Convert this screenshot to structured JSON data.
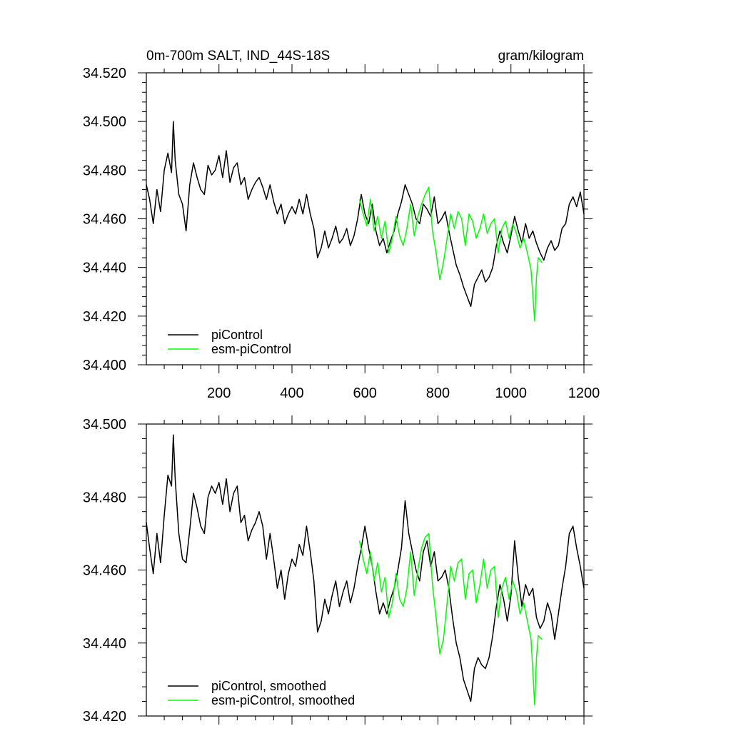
{
  "chart_data": [
    {
      "type": "line",
      "title_left": "0m-700m SALT, IND_44S-18S",
      "title_right": "gram/kilogram",
      "xlabel": "",
      "ylabel": "",
      "xlim": [
        1,
        1200
      ],
      "ylim": [
        34.4,
        34.52
      ],
      "xticks": [
        200,
        400,
        600,
        800,
        1000,
        1200
      ],
      "yticks": [
        "34.400",
        "34.420",
        "34.440",
        "34.460",
        "34.480",
        "34.500",
        "34.520"
      ],
      "grid": false,
      "legend_position": "bottom-left",
      "series": [
        {
          "name": "piControl",
          "color": "#000000",
          "x": [
            1,
            10,
            20,
            30,
            40,
            50,
            60,
            70,
            75,
            80,
            90,
            100,
            110,
            120,
            130,
            140,
            150,
            160,
            170,
            180,
            190,
            200,
            210,
            220,
            230,
            240,
            250,
            260,
            270,
            280,
            290,
            300,
            310,
            320,
            330,
            340,
            350,
            360,
            370,
            380,
            390,
            400,
            410,
            420,
            430,
            440,
            450,
            460,
            470,
            480,
            490,
            500,
            510,
            520,
            530,
            540,
            550,
            560,
            570,
            580,
            590,
            600,
            610,
            620,
            630,
            640,
            650,
            660,
            670,
            680,
            690,
            700,
            710,
            720,
            730,
            740,
            750,
            760,
            770,
            780,
            790,
            800,
            810,
            820,
            830,
            840,
            850,
            860,
            870,
            880,
            890,
            900,
            910,
            920,
            930,
            940,
            950,
            960,
            970,
            980,
            990,
            1000,
            1010,
            1020,
            1030,
            1040,
            1050,
            1060,
            1070,
            1080,
            1090,
            1100,
            1110,
            1120,
            1130,
            1140,
            1150,
            1160,
            1170,
            1180,
            1190,
            1200
          ],
          "y": [
            34.474,
            34.468,
            34.458,
            34.472,
            34.463,
            34.48,
            34.487,
            34.479,
            34.5,
            34.484,
            34.47,
            34.466,
            34.455,
            34.474,
            34.483,
            34.477,
            34.472,
            34.47,
            34.482,
            34.478,
            34.48,
            34.486,
            34.477,
            34.488,
            34.475,
            34.481,
            34.483,
            34.474,
            34.477,
            34.468,
            34.472,
            34.475,
            34.477,
            34.473,
            34.468,
            34.474,
            34.467,
            34.462,
            34.466,
            34.458,
            34.462,
            34.465,
            34.462,
            34.468,
            34.462,
            34.47,
            34.462,
            34.456,
            34.444,
            34.448,
            34.455,
            34.448,
            34.452,
            34.457,
            34.45,
            34.452,
            34.456,
            34.449,
            34.453,
            34.46,
            34.47,
            34.462,
            34.458,
            34.466,
            34.455,
            34.449,
            34.452,
            34.446,
            34.451,
            34.455,
            34.462,
            34.467,
            34.474,
            34.47,
            34.466,
            34.46,
            34.458,
            34.466,
            34.464,
            34.461,
            34.469,
            34.458,
            34.46,
            34.463,
            34.455,
            34.448,
            34.441,
            34.437,
            34.432,
            34.428,
            34.424,
            34.433,
            34.436,
            34.439,
            34.434,
            34.436,
            34.44,
            34.449,
            34.455,
            34.45,
            34.446,
            34.453,
            34.461,
            34.455,
            34.45,
            34.458,
            34.452,
            34.455,
            34.45,
            34.446,
            34.443,
            34.448,
            34.451,
            34.447,
            34.449,
            34.456,
            34.458,
            34.466,
            34.469,
            34.465,
            34.471,
            34.462
          ]
        },
        {
          "name": "esm-piControl",
          "color": "#00ff00",
          "x": [
            585,
            595,
            605,
            615,
            625,
            635,
            645,
            655,
            665,
            675,
            685,
            695,
            705,
            715,
            725,
            735,
            745,
            755,
            765,
            775,
            785,
            795,
            805,
            815,
            825,
            835,
            845,
            855,
            865,
            875,
            885,
            895,
            905,
            915,
            925,
            935,
            945,
            955,
            965,
            975,
            985,
            995,
            1005,
            1015,
            1025,
            1035,
            1045,
            1055,
            1065,
            1070,
            1075,
            1085
          ],
          "y": [
            34.468,
            34.462,
            34.457,
            34.468,
            34.455,
            34.461,
            34.452,
            34.459,
            34.446,
            34.452,
            34.461,
            34.453,
            34.449,
            34.456,
            34.466,
            34.453,
            34.461,
            34.466,
            34.47,
            34.473,
            34.455,
            34.446,
            34.435,
            34.442,
            34.452,
            34.462,
            34.456,
            34.463,
            34.46,
            34.449,
            34.462,
            34.459,
            34.452,
            34.456,
            34.462,
            34.454,
            34.458,
            34.46,
            34.446,
            34.456,
            34.459,
            34.452,
            34.458,
            34.454,
            34.448,
            34.452,
            34.446,
            34.439,
            34.418,
            34.436,
            34.444,
            34.442
          ]
        }
      ],
      "legend": [
        "piControl",
        "esm-piControl"
      ]
    },
    {
      "type": "line",
      "title": "",
      "xlabel": "",
      "ylabel": "",
      "xlim": [
        1,
        1200
      ],
      "ylim": [
        34.42,
        34.5
      ],
      "yticks": [
        "34.420",
        "34.440",
        "34.460",
        "34.480",
        "34.500"
      ],
      "grid": false,
      "legend_position": "bottom-left",
      "series": [
        {
          "name": "piControl, smoothed",
          "color": "#000000",
          "x": [
            1,
            10,
            20,
            30,
            40,
            50,
            60,
            70,
            75,
            80,
            90,
            100,
            110,
            120,
            130,
            140,
            150,
            160,
            170,
            180,
            190,
            200,
            210,
            220,
            230,
            240,
            250,
            260,
            270,
            280,
            290,
            300,
            310,
            320,
            330,
            340,
            350,
            360,
            370,
            380,
            390,
            400,
            410,
            420,
            430,
            440,
            450,
            460,
            470,
            480,
            490,
            500,
            510,
            520,
            530,
            540,
            550,
            560,
            570,
            580,
            590,
            600,
            610,
            620,
            630,
            640,
            650,
            660,
            670,
            680,
            690,
            700,
            710,
            720,
            730,
            740,
            750,
            760,
            770,
            780,
            790,
            800,
            810,
            820,
            830,
            840,
            850,
            860,
            870,
            880,
            890,
            900,
            910,
            920,
            930,
            940,
            950,
            960,
            970,
            980,
            990,
            1000,
            1010,
            1020,
            1030,
            1040,
            1050,
            1060,
            1070,
            1080,
            1090,
            1100,
            1110,
            1120,
            1130,
            1140,
            1150,
            1160,
            1170,
            1180,
            1190,
            1200
          ],
          "y": [
            34.473,
            34.466,
            34.459,
            34.47,
            34.462,
            34.475,
            34.486,
            34.483,
            34.497,
            34.485,
            34.47,
            34.463,
            34.462,
            34.471,
            34.481,
            34.477,
            34.472,
            34.47,
            34.48,
            34.483,
            34.481,
            34.484,
            34.478,
            34.485,
            34.476,
            34.481,
            34.483,
            34.473,
            34.475,
            34.468,
            34.471,
            34.473,
            34.476,
            34.472,
            34.463,
            34.47,
            34.463,
            34.455,
            34.46,
            34.452,
            34.459,
            34.463,
            34.461,
            34.467,
            34.464,
            34.472,
            34.465,
            34.457,
            34.443,
            34.446,
            34.452,
            34.448,
            34.453,
            34.457,
            34.45,
            34.454,
            34.457,
            34.451,
            34.455,
            34.461,
            34.466,
            34.472,
            34.466,
            34.461,
            34.454,
            34.448,
            34.451,
            34.448,
            34.452,
            34.455,
            34.46,
            34.466,
            34.479,
            34.47,
            34.465,
            34.46,
            34.457,
            34.465,
            34.468,
            34.461,
            34.465,
            34.457,
            34.458,
            34.46,
            34.455,
            34.447,
            34.44,
            34.436,
            34.43,
            34.427,
            34.424,
            34.433,
            34.436,
            34.434,
            34.433,
            34.436,
            34.442,
            34.45,
            34.456,
            34.452,
            34.446,
            34.453,
            34.468,
            34.458,
            34.45,
            34.456,
            34.453,
            34.455,
            34.447,
            34.444,
            34.446,
            34.451,
            34.448,
            34.441,
            34.448,
            34.455,
            34.461,
            34.47,
            34.472,
            34.466,
            34.461,
            34.455
          ]
        },
        {
          "name": "esm-piControl, smoothed",
          "color": "#00ff00",
          "x": [
            585,
            595,
            605,
            615,
            625,
            635,
            645,
            655,
            665,
            675,
            685,
            695,
            705,
            715,
            725,
            735,
            745,
            755,
            765,
            775,
            785,
            795,
            805,
            815,
            825,
            835,
            845,
            855,
            865,
            875,
            885,
            895,
            905,
            915,
            925,
            935,
            945,
            955,
            965,
            975,
            985,
            995,
            1005,
            1015,
            1025,
            1035,
            1045,
            1055,
            1065,
            1070,
            1075,
            1085
          ],
          "y": [
            34.468,
            34.463,
            34.459,
            34.465,
            34.457,
            34.462,
            34.454,
            34.458,
            34.447,
            34.451,
            34.459,
            34.452,
            34.45,
            34.455,
            34.465,
            34.453,
            34.46,
            34.466,
            34.469,
            34.47,
            34.456,
            34.447,
            34.437,
            34.441,
            34.451,
            34.461,
            34.457,
            34.462,
            34.463,
            34.452,
            34.459,
            34.46,
            34.451,
            34.456,
            34.463,
            34.455,
            34.46,
            34.461,
            34.447,
            34.455,
            34.458,
            34.452,
            34.457,
            34.454,
            34.448,
            34.451,
            34.446,
            34.441,
            34.423,
            34.436,
            34.442,
            34.441
          ]
        }
      ],
      "legend": [
        "piControl, smoothed",
        "esm-piControl, smoothed"
      ]
    }
  ]
}
